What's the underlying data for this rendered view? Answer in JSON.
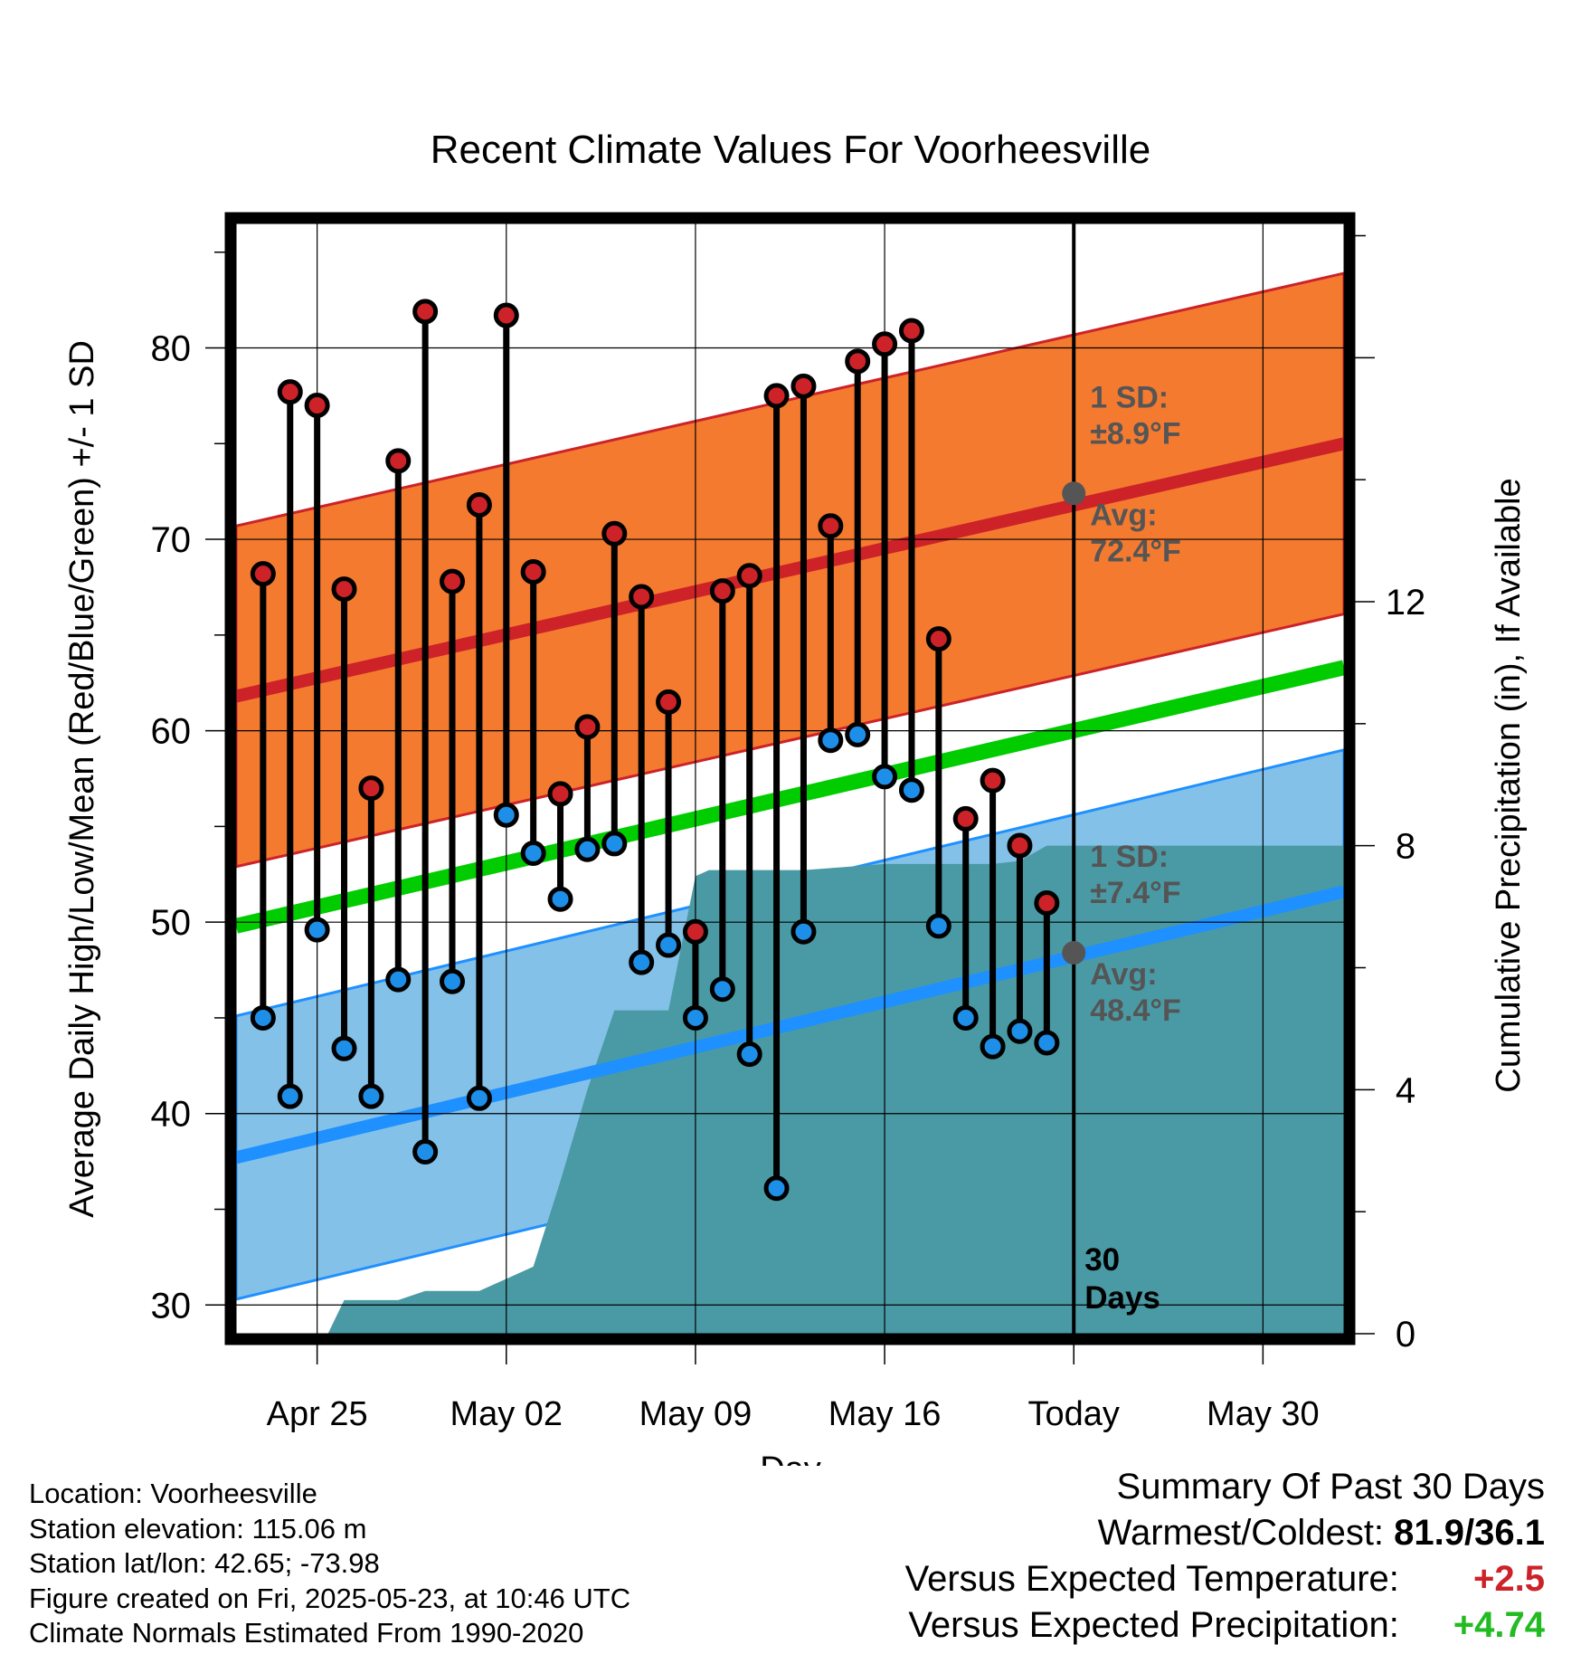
{
  "chart_data": {
    "type": "line",
    "title": "Recent Climate Values For Voorheesville",
    "xlabel": "Day",
    "ylabel": "Average Daily High/Low/Mean (Red/Blue/Green) +/- 1 SD",
    "y2label": "Cumulative Precipitation (in), If Available",
    "x_tick_labels": [
      "Apr 25",
      "May 02",
      "May 09",
      "May 16",
      "Today",
      "May 30"
    ],
    "x_tick_days": [
      3,
      10,
      17,
      24,
      31,
      38
    ],
    "x_range_days": [
      0,
      41
    ],
    "ylim": [
      28.5,
      86.5
    ],
    "y_ticks": [
      30,
      40,
      50,
      60,
      70,
      80
    ],
    "y2lim": [
      0,
      18.2
    ],
    "y2_ticks": [
      0,
      4,
      8,
      12
    ],
    "today_day": 31,
    "period_label": "30 Days",
    "normals": {
      "high_avg": [
        61.8,
        75.0
      ],
      "high_sd": 8.9,
      "low_avg": [
        37.7,
        51.6
      ],
      "low_sd": 7.4,
      "mean_avg": [
        49.8,
        63.3
      ],
      "high_label": [
        "1 SD:",
        "±8.9°F",
        "Avg:",
        "72.4°F"
      ],
      "low_label": [
        "1 SD:",
        "±7.4°F",
        "Avg:",
        "48.4°F"
      ],
      "today_high_avg": 72.4,
      "today_low_avg": 48.4
    },
    "series": [
      {
        "name": "High",
        "x": [
          1,
          2,
          3,
          4,
          5,
          6,
          7,
          8,
          9,
          10,
          11,
          12,
          13,
          14,
          15,
          16,
          17,
          18,
          19,
          20,
          21,
          22,
          23,
          24,
          25,
          26,
          27,
          28,
          29,
          30
        ],
        "values": [
          68.2,
          77.7,
          77.0,
          67.4,
          57.0,
          74.1,
          81.9,
          67.8,
          71.8,
          81.7,
          68.3,
          56.7,
          60.2,
          70.3,
          67.0,
          61.5,
          49.5,
          67.3,
          68.1,
          77.5,
          78.0,
          70.7,
          79.3,
          80.2,
          80.9,
          64.8,
          55.4,
          57.4,
          54.0,
          51.0
        ]
      },
      {
        "name": "Low",
        "x": [
          1,
          2,
          3,
          4,
          5,
          6,
          7,
          8,
          9,
          10,
          11,
          12,
          13,
          14,
          15,
          16,
          17,
          18,
          19,
          20,
          21,
          22,
          23,
          24,
          25,
          26,
          27,
          28,
          29,
          30
        ],
        "values": [
          45.0,
          40.9,
          49.6,
          43.4,
          40.9,
          47.0,
          38.0,
          46.9,
          40.8,
          55.6,
          53.6,
          51.2,
          53.8,
          54.1,
          47.9,
          48.8,
          45.0,
          46.5,
          43.1,
          36.1,
          49.5,
          59.5,
          59.8,
          57.6,
          56.9,
          49.8,
          45.0,
          43.5,
          44.3,
          43.7
        ]
      },
      {
        "name": "Cumulative Precipitation",
        "x": [
          0,
          3.4,
          4.0,
          6.0,
          7.0,
          9.0,
          10.0,
          11.0,
          12.0,
          13.0,
          14.0,
          15.0,
          16.0,
          17.0,
          17.5,
          20.0,
          21.0,
          24.0,
          25.0,
          28.0,
          29.0,
          30.0,
          41.0
        ],
        "values": [
          0.0,
          0.0,
          0.55,
          0.55,
          0.7,
          0.7,
          0.9,
          1.1,
          2.5,
          4.0,
          5.3,
          5.3,
          5.3,
          7.5,
          7.6,
          7.6,
          7.6,
          7.7,
          7.7,
          7.7,
          7.75,
          8.0,
          8.0
        ]
      }
    ]
  },
  "info": {
    "location": "Location: Voorheesville",
    "elevation": "Station elevation: 115.06 m",
    "latlon": "Station lat/lon: 42.65; -73.98",
    "created": "Figure created on Fri, 2025-05-23, at 10:46 UTC",
    "normals": "Climate Normals Estimated From 1990-2020"
  },
  "summary": {
    "heading": "Summary Of Past 30 Days",
    "warm_cold_label": "Warmest/Coldest:",
    "warm_cold_value": "81.9/36.1",
    "temp_label": "Versus Expected Temperature:",
    "temp_value": "+2.5",
    "precip_label": "Versus Expected Precipitation:",
    "precip_value": "+4.74"
  },
  "colors": {
    "high_band": "#f47a30",
    "high_line": "#cc2228",
    "low_band": "#84c1e8",
    "low_line": "#1e90ff",
    "mean_line": "#00cc00",
    "precip": "#4a9aa5",
    "high_dot": "#cc2228",
    "low_dot": "#1e8fe8",
    "avg_marker": "#555555",
    "temp_value": "#cc2228",
    "precip_value": "#22bb22"
  }
}
